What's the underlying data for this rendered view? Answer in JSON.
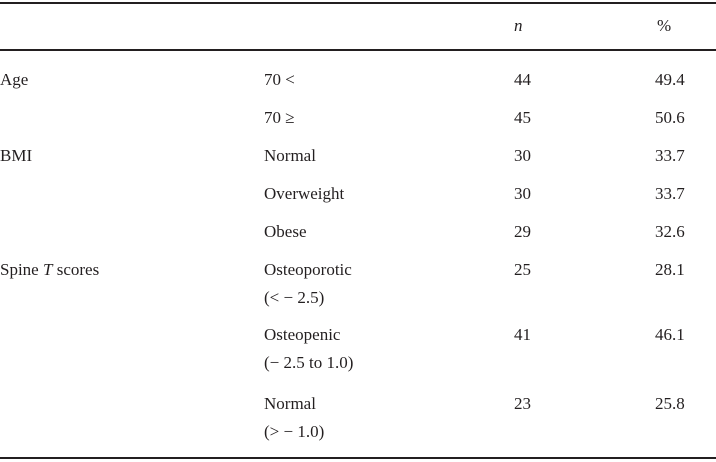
{
  "table": {
    "header": {
      "n": "n",
      "percent": "%"
    },
    "rows": [
      {
        "variable": "Age",
        "category_line1": "70 <",
        "category_line2": "",
        "n": "44",
        "percent": "49.4"
      },
      {
        "variable": "",
        "category_line1": "70 ≥",
        "category_line2": "",
        "n": "45",
        "percent": "50.6"
      },
      {
        "variable": "BMI",
        "category_line1": "Normal",
        "category_line2": "",
        "n": "30",
        "percent": "33.7"
      },
      {
        "variable": "",
        "category_line1": "Overweight",
        "category_line2": "",
        "n": "30",
        "percent": "33.7"
      },
      {
        "variable": "",
        "category_line1": "Obese",
        "category_line2": "",
        "n": "29",
        "percent": "32.6"
      },
      {
        "variable_prefix": "Spine ",
        "variable_italic": "T",
        "variable_suffix": " scores",
        "category_line1": "Osteoporotic",
        "category_line2": "(< − 2.5)",
        "n": "25",
        "percent": "28.1"
      },
      {
        "variable": "",
        "category_line1": "Osteopenic",
        "category_line2": "(− 2.5 to 1.0)",
        "n": "41",
        "percent": "46.1"
      },
      {
        "variable": "",
        "category_line1": "Normal",
        "category_line2": "(> − 1.0)",
        "n": "23",
        "percent": "25.8"
      }
    ]
  }
}
